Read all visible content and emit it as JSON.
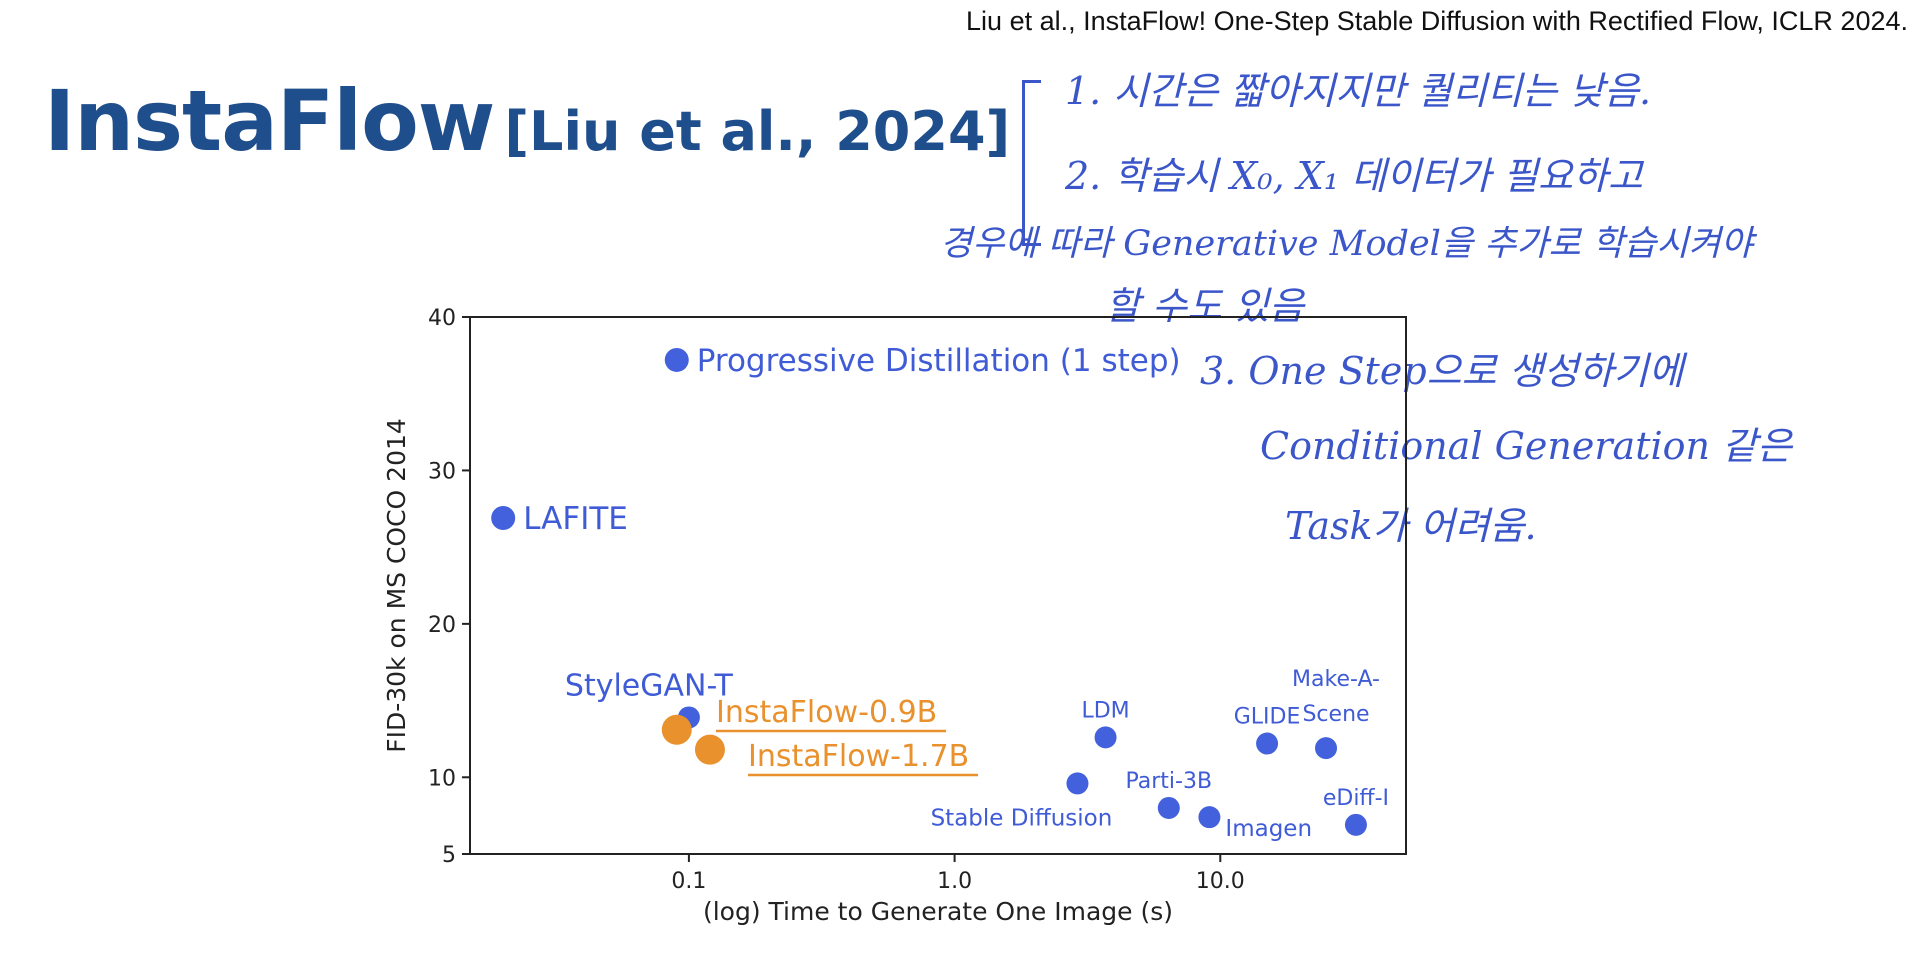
{
  "citation": "Liu et al., InstaFlow! One-Step Stable Diffusion with Rectified Flow, ICLR 2024.",
  "title": {
    "main": "InstaFlow",
    "ref": "[Liu et al., 2024]"
  },
  "handwritten_notes": [
    "1. 시간은 짧아지지만 퀄리티는 낮음.",
    "2. 학습시 X₀, X₁ 데이터가 필요하고",
    "경우에 따라 Generative Model을 추가로 학습시켜야",
    "할 수도 있음",
    "3. One Step으로 생성하기에",
    "Conditional Generation 같은",
    "Task가 어려움."
  ],
  "colors": {
    "blue": "#4361dc",
    "orange": "#e8912d",
    "title": "#1f4e8c",
    "handwriting": "#3a56c9"
  },
  "chart_data": {
    "type": "scatter",
    "title": "",
    "xlabel": "(log) Time to Generate One Image (s)",
    "ylabel": "FID-30k on MS COCO 2014",
    "x_scale": "log",
    "xlim": [
      0.015,
      50
    ],
    "ylim": [
      5,
      40
    ],
    "x_ticks": [
      0.1,
      1.0,
      10.0
    ],
    "x_tick_labels": [
      "0.1",
      "1.0",
      "10.0"
    ],
    "y_ticks": [
      5,
      10,
      20,
      30,
      40
    ],
    "grid": false,
    "points": [
      {
        "label": "Progressive Distillation (1 step)",
        "x": 0.09,
        "y": 37.2,
        "color": "blue",
        "size": "medium",
        "label_pos": "right-large"
      },
      {
        "label": "LAFITE",
        "x": 0.02,
        "y": 26.9,
        "color": "blue",
        "size": "medium",
        "label_pos": "right-large"
      },
      {
        "label": "StyleGAN-T",
        "x": 0.1,
        "y": 13.9,
        "color": "blue",
        "size": "small",
        "label_pos": "above"
      },
      {
        "label": "InstaFlow-0.9B",
        "x": 0.09,
        "y": 13.1,
        "color": "orange",
        "size": "large",
        "label_pos": "orange-upper"
      },
      {
        "label": "InstaFlow-1.7B",
        "x": 0.12,
        "y": 11.8,
        "color": "orange",
        "size": "large",
        "label_pos": "orange-lower"
      },
      {
        "label": "LDM",
        "x": 3.7,
        "y": 12.6,
        "color": "blue",
        "size": "small",
        "label_pos": "above"
      },
      {
        "label": "GLIDE",
        "x": 15.0,
        "y": 12.2,
        "color": "blue",
        "size": "small",
        "label_pos": "above"
      },
      {
        "label": "Make-A-Scene",
        "x": 25.0,
        "y": 11.9,
        "color": "blue",
        "size": "small",
        "label_pos": "above-two-lines"
      },
      {
        "label": "Stable Diffusion",
        "x": 2.9,
        "y": 9.6,
        "color": "blue",
        "size": "small",
        "label_pos": "below-left"
      },
      {
        "label": "Parti-3B",
        "x": 6.4,
        "y": 8.0,
        "color": "blue",
        "size": "small",
        "label_pos": "above"
      },
      {
        "label": "Imagen",
        "x": 9.1,
        "y": 7.4,
        "color": "blue",
        "size": "small",
        "label_pos": "right-low"
      },
      {
        "label": "eDiff-I",
        "x": 32.4,
        "y": 6.9,
        "color": "blue",
        "size": "small",
        "label_pos": "above"
      }
    ]
  }
}
